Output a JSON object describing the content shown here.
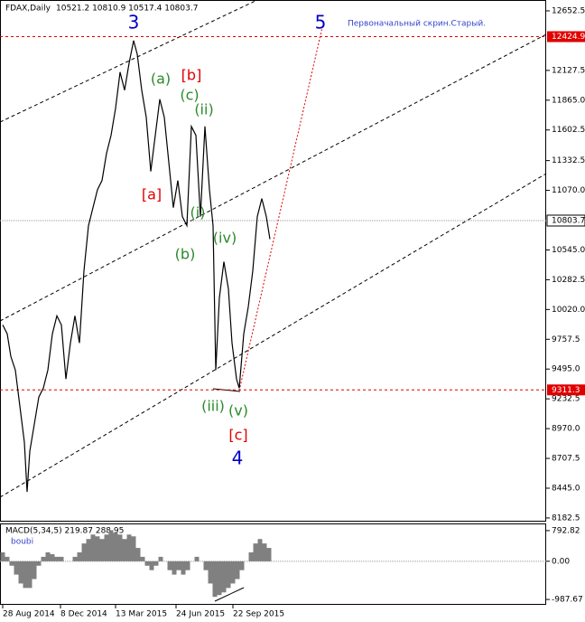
{
  "chart_data": [
    {
      "type": "line",
      "title": "FDAX,Daily",
      "subtitle": "10521.2 10810.9 10517.4 10803.7",
      "note": "Первоначальный скрин.Старый.",
      "x": [
        3,
        8,
        12,
        17,
        22,
        27,
        30,
        33,
        38,
        43,
        48,
        53,
        58,
        63,
        68,
        73,
        78,
        83,
        88,
        93,
        98,
        103,
        108,
        113,
        118,
        123,
        128,
        133,
        138,
        143,
        148,
        152,
        157,
        162,
        167,
        172,
        177,
        182,
        187,
        192,
        197,
        202,
        207,
        212,
        217,
        222,
        227,
        232,
        236,
        239,
        243,
        248,
        253,
        257,
        262,
        265,
        270,
        275,
        280,
        285,
        290,
        295,
        299
      ],
      "values": [
        9884,
        9805,
        9606,
        9486,
        9168,
        8850,
        8412,
        8770,
        9009,
        9248,
        9327,
        9486,
        9805,
        9964,
        9884,
        9407,
        9725,
        9964,
        9725,
        10361,
        10759,
        10918,
        11077,
        11157,
        11396,
        11555,
        11793,
        12112,
        11953,
        12191,
        12390,
        12271,
        11953,
        11714,
        11237,
        11555,
        11873,
        11714,
        11316,
        10918,
        11157,
        10839,
        10759,
        11634,
        11555,
        10839,
        11634,
        11077,
        10759,
        9486,
        10123,
        10441,
        10202,
        9725,
        9407,
        9327,
        9805,
        10043,
        10361,
        10839,
        10998,
        10839,
        10640
      ],
      "color": "#000000",
      "xlim": [
        0,
        605
      ],
      "xticks": [
        {
          "value": 3,
          "label": "28 Aug 2014"
        },
        {
          "value": 67,
          "label": "8 Dec 2014"
        },
        {
          "value": 128,
          "label": "13 Mar 2015"
        },
        {
          "value": 195,
          "label": "24 Jun 2015"
        },
        {
          "value": 258,
          "label": "22 Sep 2015"
        }
      ],
      "ylim": [
        8150,
        12748
      ],
      "yticks": [
        {
          "value": 8182.5,
          "label": "8182.5"
        },
        {
          "value": 8445,
          "label": "8445.0"
        },
        {
          "value": 8707.5,
          "label": "8707.5"
        },
        {
          "value": 8970,
          "label": "8970.0"
        },
        {
          "value": 9232.5,
          "label": "9232.5"
        },
        {
          "value": 9495,
          "label": "9495.0"
        },
        {
          "value": 9757.5,
          "label": "9757.5"
        },
        {
          "value": 10020,
          "label": "10020.0"
        },
        {
          "value": 10282.5,
          "label": "10282.5"
        },
        {
          "value": 10545,
          "label": "10545.0"
        },
        {
          "value": 11070,
          "label": "11070.0"
        },
        {
          "value": 11332.5,
          "label": "11332.5"
        },
        {
          "value": 11602.5,
          "label": "11602.5"
        },
        {
          "value": 11865,
          "label": "11865.0"
        },
        {
          "value": 12127.5,
          "label": "12127.5"
        },
        {
          "value": 12652.5,
          "label": "12652.5"
        }
      ],
      "levels": [
        {
          "value": 12424.9,
          "label": "12424.9",
          "color": "#e00000"
        },
        {
          "value": 9311.3,
          "label": "9311.3",
          "color": "#e00000"
        }
      ],
      "last_price": {
        "value": 10803.7,
        "label": "10803.7"
      },
      "annotations": [
        {
          "text": "3",
          "color": "#0000c8"
        },
        {
          "text": "5",
          "color": "#0000c8"
        },
        {
          "text": "4",
          "color": "#0000c8"
        },
        {
          "text": "[b]",
          "color": "#e00000"
        },
        {
          "text": "[a]",
          "color": "#e00000"
        },
        {
          "text": "[c]",
          "color": "#e00000"
        },
        {
          "text": "(a)",
          "color": "#2a8a2a"
        },
        {
          "text": "(c)",
          "color": "#2a8a2a"
        },
        {
          "text": "(ii)",
          "color": "#2a8a2a"
        },
        {
          "text": "(i)",
          "color": "#2a8a2a"
        },
        {
          "text": "(b)",
          "color": "#2a8a2a"
        },
        {
          "text": "(iv)",
          "color": "#2a8a2a"
        },
        {
          "text": "(iii)",
          "color": "#2a8a2a"
        },
        {
          "text": "(v)",
          "color": "#2a8a2a"
        }
      ]
    },
    {
      "type": "bar",
      "title": "MACD(5,34,5) 219.87 288.95",
      "label": "boubi",
      "x": [
        3,
        8,
        13,
        18,
        23,
        28,
        33,
        38,
        43,
        48,
        53,
        58,
        63,
        68,
        73,
        78,
        83,
        88,
        93,
        98,
        103,
        108,
        113,
        118,
        123,
        128,
        133,
        138,
        143,
        148,
        153,
        158,
        163,
        168,
        173,
        178,
        183,
        188,
        193,
        198,
        203,
        208,
        213,
        218,
        223,
        228,
        233,
        238,
        243,
        248,
        253,
        258,
        263,
        268,
        273,
        278,
        283,
        288,
        293,
        298
      ],
      "values": [
        230,
        115,
        -115,
        -345,
        -575,
        -690,
        -690,
        -460,
        -115,
        115,
        230,
        184,
        115,
        115,
        0,
        0,
        115,
        230,
        460,
        575,
        690,
        644,
        575,
        690,
        805,
        736,
        690,
        575,
        690,
        644,
        345,
        115,
        -115,
        -230,
        -115,
        115,
        0,
        -230,
        -345,
        -230,
        -345,
        -230,
        0,
        115,
        0,
        -230,
        -575,
        -920,
        -874,
        -805,
        -690,
        -575,
        -460,
        -230,
        0,
        230,
        460,
        575,
        460,
        345
      ],
      "color": "#808080",
      "ylim": [
        -1126,
        954
      ],
      "yticks": [
        {
          "value": 792.82,
          "label": "792.82"
        },
        {
          "value": 0,
          "label": "0.00"
        },
        {
          "value": -987.67,
          "label": "-987.67"
        }
      ]
    }
  ]
}
